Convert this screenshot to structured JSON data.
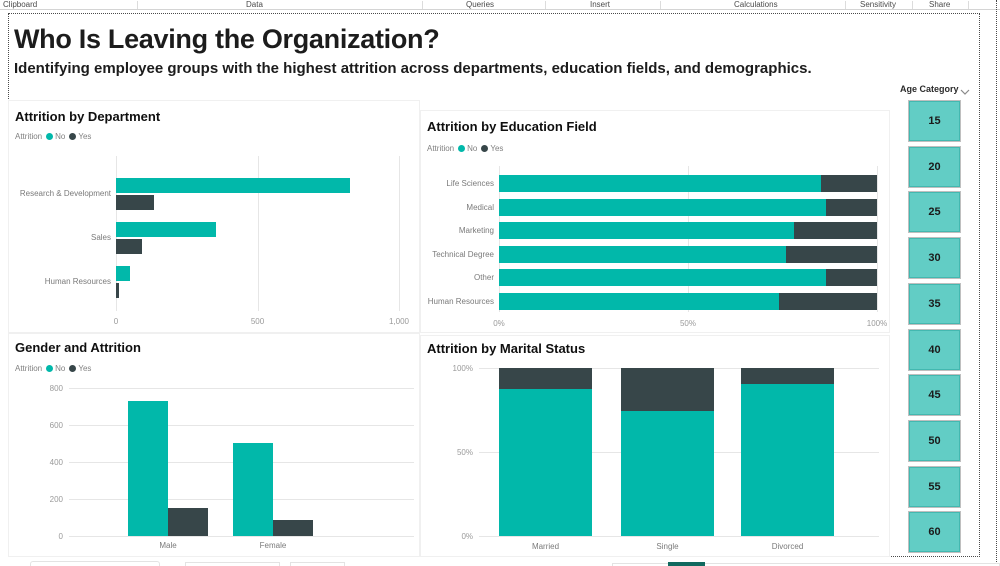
{
  "ribbon": {
    "groups": [
      {
        "label": "Clipboard",
        "x": 3
      },
      {
        "label": "Data",
        "x": 246
      },
      {
        "label": "Queries",
        "x": 466
      },
      {
        "label": "Insert",
        "x": 590
      },
      {
        "label": "Calculations",
        "x": 734
      },
      {
        "label": "Sensitivity",
        "x": 860
      },
      {
        "label": "Share",
        "x": 929
      }
    ],
    "separators_x": [
      137,
      422,
      545,
      660,
      845,
      912,
      968
    ]
  },
  "header": {
    "title": "Who Is Leaving the Organization?",
    "subtitle": "Identifying employee groups with the highest attrition across departments, education fields, and demographics."
  },
  "colors": {
    "no": "#01B8AA",
    "yes": "#374649",
    "slicer_button": "#62CDC5"
  },
  "legend": {
    "label": "Attrition",
    "no": "No",
    "yes": "Yes"
  },
  "chart_data": [
    {
      "type": "bar",
      "orientation": "horizontal-grouped",
      "title": "Attrition by Department",
      "categories": [
        "Research & Development",
        "Sales",
        "Human Resources"
      ],
      "series": [
        {
          "name": "No",
          "values": [
            828,
            354,
            51
          ]
        },
        {
          "name": "Yes",
          "values": [
            133,
            92,
            12
          ]
        }
      ],
      "xlim": [
        0,
        1000
      ],
      "xticks": [
        {
          "label": "0",
          "value": 0
        },
        {
          "label": "500",
          "value": 500
        },
        {
          "label": "1,000",
          "value": 1000
        }
      ],
      "legend_position": "top"
    },
    {
      "type": "bar",
      "orientation": "horizontal-stacked-100",
      "title": "Attrition by Education Field",
      "categories": [
        "Life Sciences",
        "Medical",
        "Marketing",
        "Technical Degree",
        "Other",
        "Human Resources"
      ],
      "series": [
        {
          "name": "No",
          "values": [
            85.3,
            86.4,
            78.0,
            75.8,
            86.6,
            74.1
          ]
        },
        {
          "name": "Yes",
          "values": [
            14.7,
            13.6,
            22.0,
            24.2,
            13.4,
            25.9
          ]
        }
      ],
      "xlim": [
        0,
        100
      ],
      "xticks": [
        {
          "label": "0%",
          "value": 0
        },
        {
          "label": "50%",
          "value": 50
        },
        {
          "label": "100%",
          "value": 100
        }
      ],
      "legend_position": "top"
    },
    {
      "type": "bar",
      "orientation": "vertical-grouped",
      "title": "Gender and Attrition",
      "categories": [
        "Male",
        "Female"
      ],
      "series": [
        {
          "name": "No",
          "values": [
            732,
            501
          ]
        },
        {
          "name": "Yes",
          "values": [
            150,
            87
          ]
        }
      ],
      "ylim": [
        0,
        800
      ],
      "yticks": [
        {
          "label": "0",
          "value": 0
        },
        {
          "label": "200",
          "value": 200
        },
        {
          "label": "400",
          "value": 400
        },
        {
          "label": "600",
          "value": 600
        },
        {
          "label": "800",
          "value": 800
        }
      ],
      "legend_position": "top"
    },
    {
      "type": "bar",
      "orientation": "vertical-stacked-100",
      "title": "Attrition by Marital Status",
      "categories": [
        "Married",
        "Single",
        "Divorced"
      ],
      "series": [
        {
          "name": "No",
          "values": [
            87.5,
            74.4,
            90.5
          ]
        },
        {
          "name": "Yes",
          "values": [
            12.5,
            25.6,
            9.5
          ]
        }
      ],
      "ylim": [
        0,
        100
      ],
      "yticks": [
        {
          "label": "0%",
          "value": 0
        },
        {
          "label": "50%",
          "value": 50
        },
        {
          "label": "100%",
          "value": 100
        }
      ],
      "legend_position": "none"
    }
  ],
  "slicer": {
    "title": "Age Category",
    "values": [
      "15",
      "20",
      "25",
      "30",
      "35",
      "40",
      "45",
      "50",
      "55",
      "60"
    ]
  }
}
